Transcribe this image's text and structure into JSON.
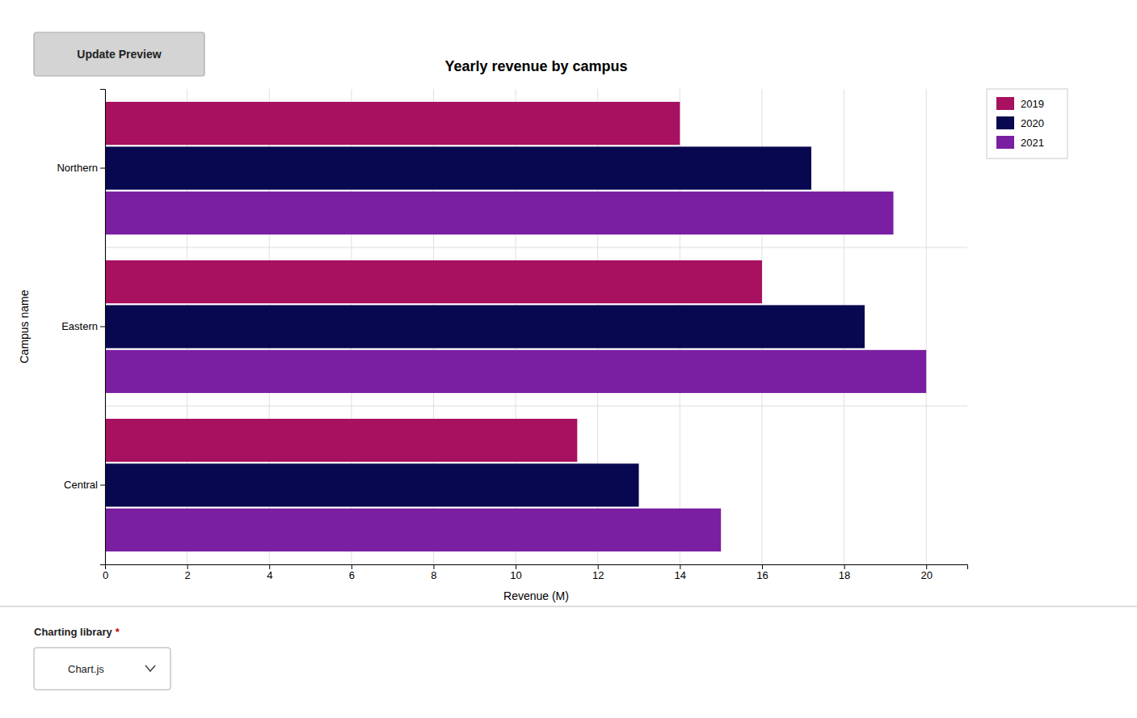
{
  "chart_data": {
    "type": "bar",
    "orientation": "horizontal",
    "title": "Yearly revenue by campus",
    "xlabel": "Revenue (M)",
    "ylabel": "Campus name",
    "categories": [
      "Central",
      "Eastern",
      "Northern"
    ],
    "series": [
      {
        "name": "2019",
        "color": "#A81060",
        "values": [
          11.5,
          16.0,
          14.0
        ]
      },
      {
        "name": "2020",
        "color": "#080850",
        "values": [
          13.0,
          18.5,
          17.2
        ]
      },
      {
        "name": "2021",
        "color": "#7B1FA2",
        "values": [
          15.0,
          20.0,
          19.2
        ]
      }
    ],
    "xlim": [
      0,
      21
    ],
    "xticks": [
      0,
      2,
      4,
      6,
      8,
      10,
      12,
      14,
      16,
      18,
      20
    ],
    "grid": true,
    "legend": "right",
    "annotations": [
      "Update Preview",
      "Charting library",
      "*",
      "Chart.js"
    ]
  }
}
